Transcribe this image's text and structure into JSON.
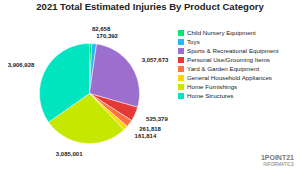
{
  "chart_data": {
    "type": "pie",
    "title": "2021 Total Estimated Injuries By Product Category",
    "categories": [
      "Child Nursery Equipment",
      "Toys",
      "Sports & Recreational Equipment",
      "Personal Use/Grooming Items",
      "Yard & Garden Equipment",
      "General Household Appliances",
      "Home Furnishings",
      "Home Structures"
    ],
    "values": [
      82658,
      170392,
      3057673,
      525379,
      261818,
      161814,
      3085001,
      3906928
    ],
    "value_labels": [
      "82,658",
      "170,392",
      "3,057,673",
      "525,379",
      "261,818",
      "161,814",
      "3,085,001",
      "3,906,928"
    ],
    "data_labels": true,
    "colors": [
      "#00e676",
      "#29b6f6",
      "#9c6fce",
      "#e53935",
      "#ff7043",
      "#ffd600",
      "#c6e800",
      "#00e5c0"
    ],
    "legend": "right",
    "annotations": [
      "1POINT21",
      "INFORMATICS"
    ]
  }
}
